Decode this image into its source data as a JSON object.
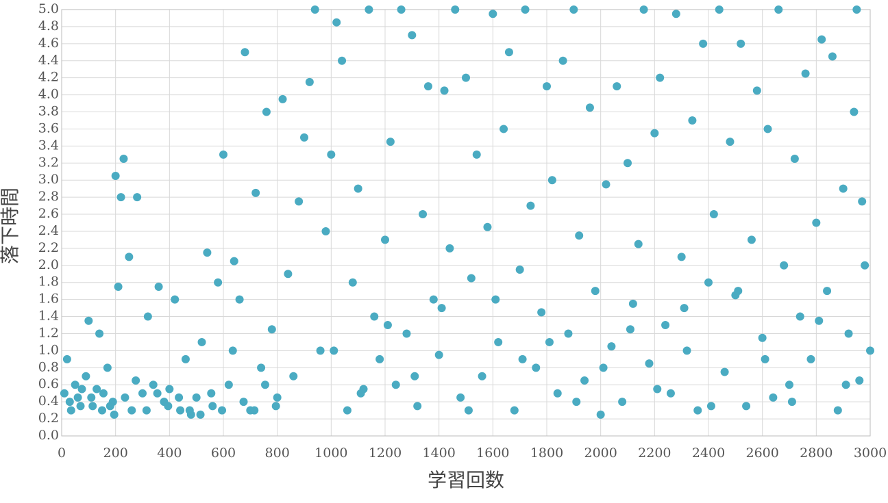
{
  "chart_data": {
    "type": "scatter",
    "x_label": "学習回数",
    "y_label": "落下時間",
    "color": "#4aabc2",
    "grid": true,
    "xlim": [
      0,
      3000
    ],
    "ylim": [
      0,
      5
    ],
    "xticks": [
      0,
      200,
      400,
      600,
      800,
      1000,
      1200,
      1400,
      1600,
      1800,
      2000,
      2200,
      2400,
      2600,
      2800,
      3000
    ],
    "yticks": [
      {
        "value": 0,
        "label": "0.0"
      },
      0.2,
      0.4,
      0.6,
      0.8,
      {
        "value": 1,
        "label": "1.0"
      },
      1.2,
      1.4,
      1.6,
      1.8,
      {
        "value": 2,
        "label": "2.0"
      },
      2.2,
      2.4,
      2.6,
      2.8,
      {
        "value": 3,
        "label": "3.0"
      },
      3.2,
      3.4,
      3.6,
      3.8,
      {
        "value": 4,
        "label": "4.0"
      },
      4.2,
      4.4,
      4.6,
      4.8,
      {
        "value": 5,
        "label": "5.0"
      }
    ],
    "x": [
      10,
      30,
      50,
      70,
      90,
      110,
      130,
      150,
      170,
      190,
      20,
      60,
      100,
      140,
      180,
      200,
      210,
      220,
      230,
      250,
      260,
      280,
      300,
      320,
      340,
      360,
      380,
      400,
      420,
      440,
      460,
      480,
      500,
      520,
      540,
      560,
      580,
      600,
      620,
      640,
      660,
      680,
      700,
      720,
      740,
      760,
      780,
      800,
      820,
      840,
      860,
      880,
      900,
      920,
      940,
      960,
      980,
      1000,
      1020,
      1040,
      1060,
      1080,
      1100,
      1120,
      1140,
      1160,
      1180,
      1200,
      1220,
      1240,
      1260,
      1280,
      1300,
      1320,
      1340,
      1360,
      1380,
      1400,
      1420,
      1440,
      1460,
      1480,
      1500,
      1520,
      1540,
      1560,
      1580,
      1600,
      1620,
      1640,
      1660,
      1680,
      1700,
      1720,
      1740,
      1760,
      1780,
      1800,
      1820,
      1840,
      1860,
      1880,
      1900,
      1920,
      1940,
      1960,
      1980,
      2000,
      2020,
      2040,
      2060,
      2080,
      2100,
      2120,
      2140,
      2160,
      2180,
      2200,
      2220,
      2240,
      2260,
      2280,
      2300,
      2320,
      2340,
      2360,
      2380,
      2400,
      2420,
      2440,
      2460,
      2480,
      2500,
      2520,
      2540,
      2560,
      2580,
      2600,
      2620,
      2640,
      2660,
      2680,
      2700,
      2720,
      2740,
      2760,
      2780,
      2800,
      2820,
      2840,
      2860,
      2880,
      2900,
      2920,
      2940,
      2960,
      2980,
      3000,
      2970,
      2950,
      35,
      75,
      115,
      155,
      195,
      235,
      275,
      315,
      355,
      395,
      435,
      475,
      515,
      555,
      595,
      635,
      675,
      715,
      755,
      795,
      1010,
      1110,
      1210,
      1310,
      1410,
      1510,
      1610,
      1710,
      1810,
      1910,
      2010,
      2110,
      2210,
      2310,
      2410,
      2510,
      2610,
      2710,
      2810,
      2910
    ],
    "values": [
      0.5,
      0.4,
      0.6,
      0.35,
      0.7,
      0.45,
      0.55,
      0.3,
      0.8,
      0.4,
      0.9,
      0.45,
      1.35,
      1.2,
      0.35,
      3.05,
      1.75,
      2.8,
      3.25,
      2.1,
      0.3,
      2.8,
      0.5,
      1.4,
      0.6,
      1.75,
      0.4,
      0.55,
      1.6,
      0.3,
      0.9,
      0.25,
      0.45,
      1.1,
      2.15,
      0.35,
      1.8,
      3.3,
      0.6,
      2.05,
      1.6,
      4.5,
      0.3,
      2.85,
      0.8,
      3.8,
      1.25,
      0.45,
      3.95,
      1.9,
      0.7,
      2.75,
      3.5,
      4.15,
      5.0,
      1.0,
      2.4,
      3.3,
      4.85,
      4.4,
      0.3,
      1.8,
      2.9,
      0.55,
      5.0,
      1.4,
      0.9,
      2.3,
      3.45,
      0.6,
      5.0,
      1.2,
      4.7,
      0.35,
      2.6,
      4.1,
      1.6,
      0.95,
      4.05,
      2.2,
      5.0,
      0.45,
      4.2,
      1.85,
      3.3,
      0.7,
      2.45,
      4.95,
      1.1,
      3.6,
      4.5,
      0.3,
      1.95,
      5.0,
      2.7,
      0.8,
      1.45,
      4.1,
      3.0,
      0.5,
      4.4,
      1.2,
      5.0,
      2.35,
      0.65,
      3.85,
      1.7,
      0.25,
      2.95,
      1.05,
      4.1,
      0.4,
      3.2,
      1.55,
      2.25,
      5.0,
      0.85,
      3.55,
      4.2,
      1.3,
      0.5,
      4.95,
      2.1,
      1.0,
      3.7,
      0.3,
      4.6,
      1.8,
      2.6,
      5.0,
      0.75,
      3.45,
      1.65,
      4.6,
      0.35,
      2.3,
      4.05,
      1.15,
      3.6,
      0.45,
      5.0,
      2.0,
      0.6,
      3.25,
      1.4,
      4.25,
      0.9,
      2.5,
      4.65,
      1.7,
      4.45,
      0.3,
      2.9,
      1.2,
      3.8,
      0.65,
      2.0,
      1.0,
      2.75,
      5.0,
      0.3,
      0.55,
      0.35,
      0.5,
      0.25,
      0.45,
      0.65,
      0.3,
      0.5,
      0.35,
      0.45,
      0.3,
      0.25,
      0.5,
      0.3,
      1.0,
      0.4,
      0.3,
      0.6,
      0.35,
      1.0,
      0.5,
      1.3,
      0.7,
      1.5,
      0.3,
      1.6,
      0.9,
      1.1,
      0.4,
      0.8,
      1.25,
      0.55,
      1.5,
      0.35,
      1.7,
      0.9,
      0.4,
      1.35,
      0.6
    ]
  }
}
